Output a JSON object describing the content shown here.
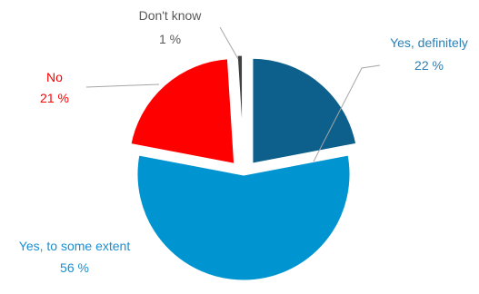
{
  "chart_data": {
    "type": "pie",
    "title": "",
    "slices": [
      {
        "label": "Yes, definitely",
        "value": 22,
        "value_text": "22 %",
        "color": "#0d5f8c",
        "label_color": "#2b7fb6"
      },
      {
        "label": "Yes, to some extent",
        "value": 56,
        "value_text": "56 %",
        "color": "#0095d0",
        "label_color": "#1a8fd0"
      },
      {
        "label": "No",
        "value": 21,
        "value_text": "21 %",
        "color": "#ff0000",
        "label_color": "#ff0000"
      },
      {
        "label": "Don't know",
        "value": 1,
        "value_text": "1 %",
        "color": "#404040",
        "label_color": "#595959"
      }
    ],
    "exploded": true,
    "legend": "none"
  }
}
